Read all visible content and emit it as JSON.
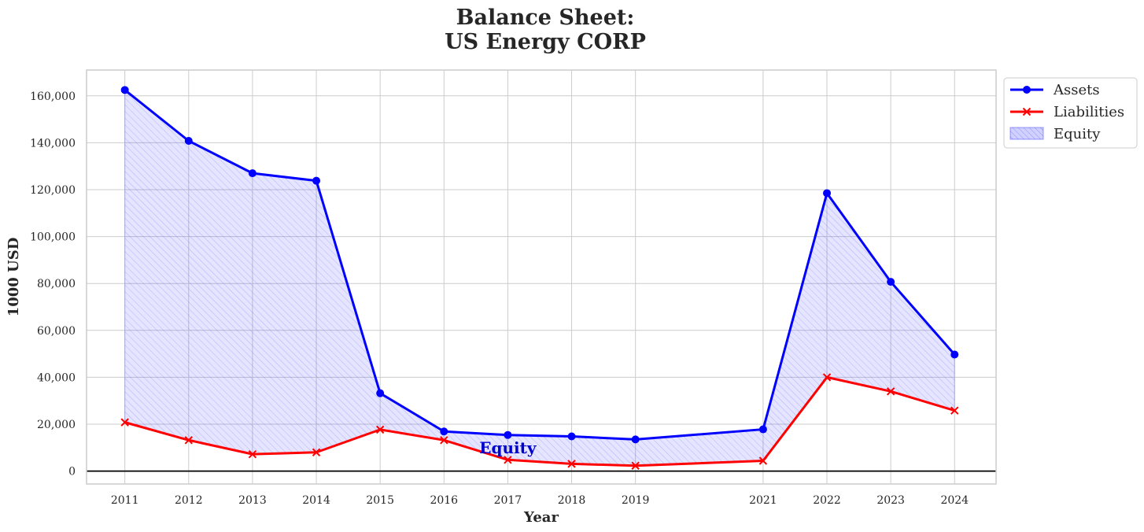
{
  "chart_data": {
    "type": "line",
    "title_line1": "Balance Sheet:",
    "title_line2": "US Energy CORP",
    "xlabel": "Year",
    "ylabel": "1000 USD",
    "x": [
      2011,
      2012,
      2013,
      2014,
      2015,
      2016,
      2017,
      2018,
      2019,
      2021,
      2022,
      2023,
      2024
    ],
    "xlim": [
      2010.4,
      2024.65
    ],
    "ylim": [
      -5500,
      171000
    ],
    "yticks": [
      0,
      20000,
      40000,
      60000,
      80000,
      100000,
      120000,
      140000,
      160000
    ],
    "ytick_labels": [
      "0",
      "20,000",
      "40,000",
      "60,000",
      "80,000",
      "100,000",
      "120,000",
      "140,000",
      "160,000"
    ],
    "grid": true,
    "legend_placement": "outside-top-right",
    "series": [
      {
        "name": "Assets",
        "color": "#0000ff",
        "marker": "circle",
        "values": [
          162500,
          140800,
          127000,
          123800,
          33200,
          16900,
          15400,
          14800,
          13500,
          17800,
          118500,
          80700,
          49700
        ]
      },
      {
        "name": "Liabilities",
        "color": "#ff0000",
        "marker": "x",
        "values": [
          20800,
          13200,
          7200,
          8000,
          17700,
          13200,
          4800,
          3100,
          2300,
          4400,
          40000,
          34000,
          25800
        ]
      }
    ],
    "fill": {
      "name": "Equity",
      "color": "#0000ff",
      "hatch": "diagonal"
    },
    "annotation": {
      "text": "Equity",
      "x": 2017,
      "y": 10000,
      "color": "#0000cd"
    }
  }
}
